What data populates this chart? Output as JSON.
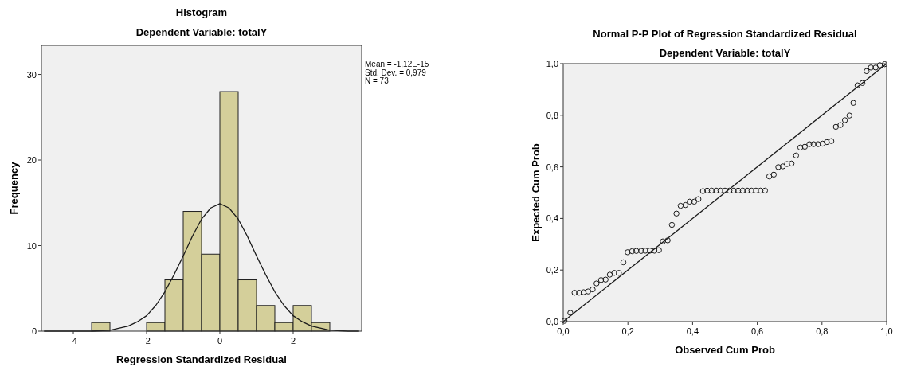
{
  "chart_data": [
    {
      "type": "histogram",
      "title": "Histogram",
      "subtitle": "Dependent Variable: totalY",
      "xlabel": "Regression Standardized Residual",
      "ylabel": "Frequency",
      "annotations": [
        "Mean = -1,12E-15",
        "Std. Dev. = 0,979",
        "N = 73"
      ],
      "bins": [
        -3.5,
        -3,
        -2.5,
        -2,
        -1.5,
        -1,
        -0.5,
        0,
        0.5,
        1,
        1.5,
        2,
        2.5,
        3
      ],
      "xlim": [
        -4.87,
        3.87
      ],
      "ylim": [
        0,
        33.4
      ],
      "xticks": [
        -4,
        -2,
        0,
        2
      ],
      "yticks": [
        0,
        10,
        20,
        30
      ],
      "grid": false,
      "series": [
        {
          "color": "#d4cf9a",
          "values": [
            1,
            0,
            0,
            1,
            6,
            14,
            9,
            28,
            6,
            3,
            1,
            3,
            1
          ]
        },
        {
          "type": "line",
          "color": "#1a1a1a",
          "x": [
            -4.8,
            -4,
            -3.5,
            -3,
            -2.5,
            -2.25,
            -2,
            -1.75,
            -1.5,
            -1.25,
            -1,
            -0.75,
            -0.5,
            -0.25,
            0,
            0.25,
            0.5,
            0.75,
            1,
            1.25,
            1.5,
            1.75,
            2,
            2.25,
            2.5,
            3,
            3.5,
            3.8
          ],
          "values": [
            0,
            0,
            0,
            0.1,
            0.6,
            1.1,
            1.8,
            3,
            4.6,
            6.6,
            8.8,
            11.1,
            13.1,
            14.4,
            14.9,
            14.4,
            13.1,
            11.1,
            8.8,
            6.6,
            4.6,
            3,
            1.8,
            1.1,
            0.6,
            0.1,
            0,
            0
          ]
        }
      ]
    },
    {
      "type": "scatter",
      "title": "Normal P-P Plot of Regression Standardized Residual",
      "subtitle": "Dependent Variable: totalY",
      "xlabel": "Observed Cum Prob",
      "ylabel": "Expected Cum Prob",
      "xlim": [
        0,
        1
      ],
      "ylim": [
        0,
        1
      ],
      "xticks": [
        {
          "value": 0,
          "label": "0,0"
        },
        {
          "value": 0.2,
          "label": "0,2"
        },
        {
          "value": 0.4,
          "label": "0,4"
        },
        {
          "value": 0.6,
          "label": "0,6"
        },
        {
          "value": 0.8,
          "label": "0,8"
        },
        {
          "value": 1,
          "label": "1,0"
        }
      ],
      "yticks": [
        {
          "value": 0,
          "label": "0,0"
        },
        {
          "value": 0.2,
          "label": "0,2"
        },
        {
          "value": 0.4,
          "label": "0,4"
        },
        {
          "value": 0.6,
          "label": "0,6"
        },
        {
          "value": 0.8,
          "label": "0,8"
        },
        {
          "value": 1,
          "label": "1,0"
        }
      ],
      "grid": false,
      "series": [
        {
          "color": "#1a1a1a",
          "marker": "circle",
          "x": [
            0.004,
            0.022,
            0.035,
            0.049,
            0.063,
            0.077,
            0.091,
            0.103,
            0.117,
            0.131,
            0.144,
            0.158,
            0.172,
            0.186,
            0.199,
            0.213,
            0.226,
            0.241,
            0.254,
            0.268,
            0.282,
            0.296,
            0.308,
            0.323,
            0.336,
            0.35,
            0.363,
            0.378,
            0.391,
            0.405,
            0.418,
            0.432,
            0.445,
            0.459,
            0.473,
            0.486,
            0.5,
            0.514,
            0.527,
            0.541,
            0.555,
            0.569,
            0.582,
            0.596,
            0.61,
            0.624,
            0.637,
            0.651,
            0.665,
            0.679,
            0.692,
            0.706,
            0.72,
            0.733,
            0.747,
            0.761,
            0.774,
            0.788,
            0.802,
            0.815,
            0.829,
            0.843,
            0.857,
            0.871,
            0.885,
            0.897,
            0.91,
            0.925,
            0.938,
            0.951,
            0.966,
            0.979,
            0.994
          ],
          "values": [
            0.003,
            0.034,
            0.112,
            0.112,
            0.114,
            0.117,
            0.125,
            0.148,
            0.161,
            0.163,
            0.182,
            0.189,
            0.189,
            0.23,
            0.269,
            0.273,
            0.274,
            0.274,
            0.275,
            0.275,
            0.275,
            0.277,
            0.311,
            0.315,
            0.375,
            0.419,
            0.449,
            0.452,
            0.465,
            0.465,
            0.475,
            0.506,
            0.508,
            0.508,
            0.508,
            0.508,
            0.508,
            0.508,
            0.508,
            0.508,
            0.508,
            0.508,
            0.508,
            0.508,
            0.508,
            0.508,
            0.563,
            0.57,
            0.599,
            0.602,
            0.611,
            0.613,
            0.644,
            0.675,
            0.678,
            0.688,
            0.688,
            0.688,
            0.69,
            0.696,
            0.7,
            0.755,
            0.762,
            0.781,
            0.799,
            0.848,
            0.916,
            0.925,
            0.971,
            0.985,
            0.985,
            0.994,
            0.998
          ]
        },
        {
          "type": "line",
          "color": "#1a1a1a",
          "x": [
            0,
            1
          ],
          "values": [
            0,
            1
          ]
        }
      ]
    }
  ]
}
